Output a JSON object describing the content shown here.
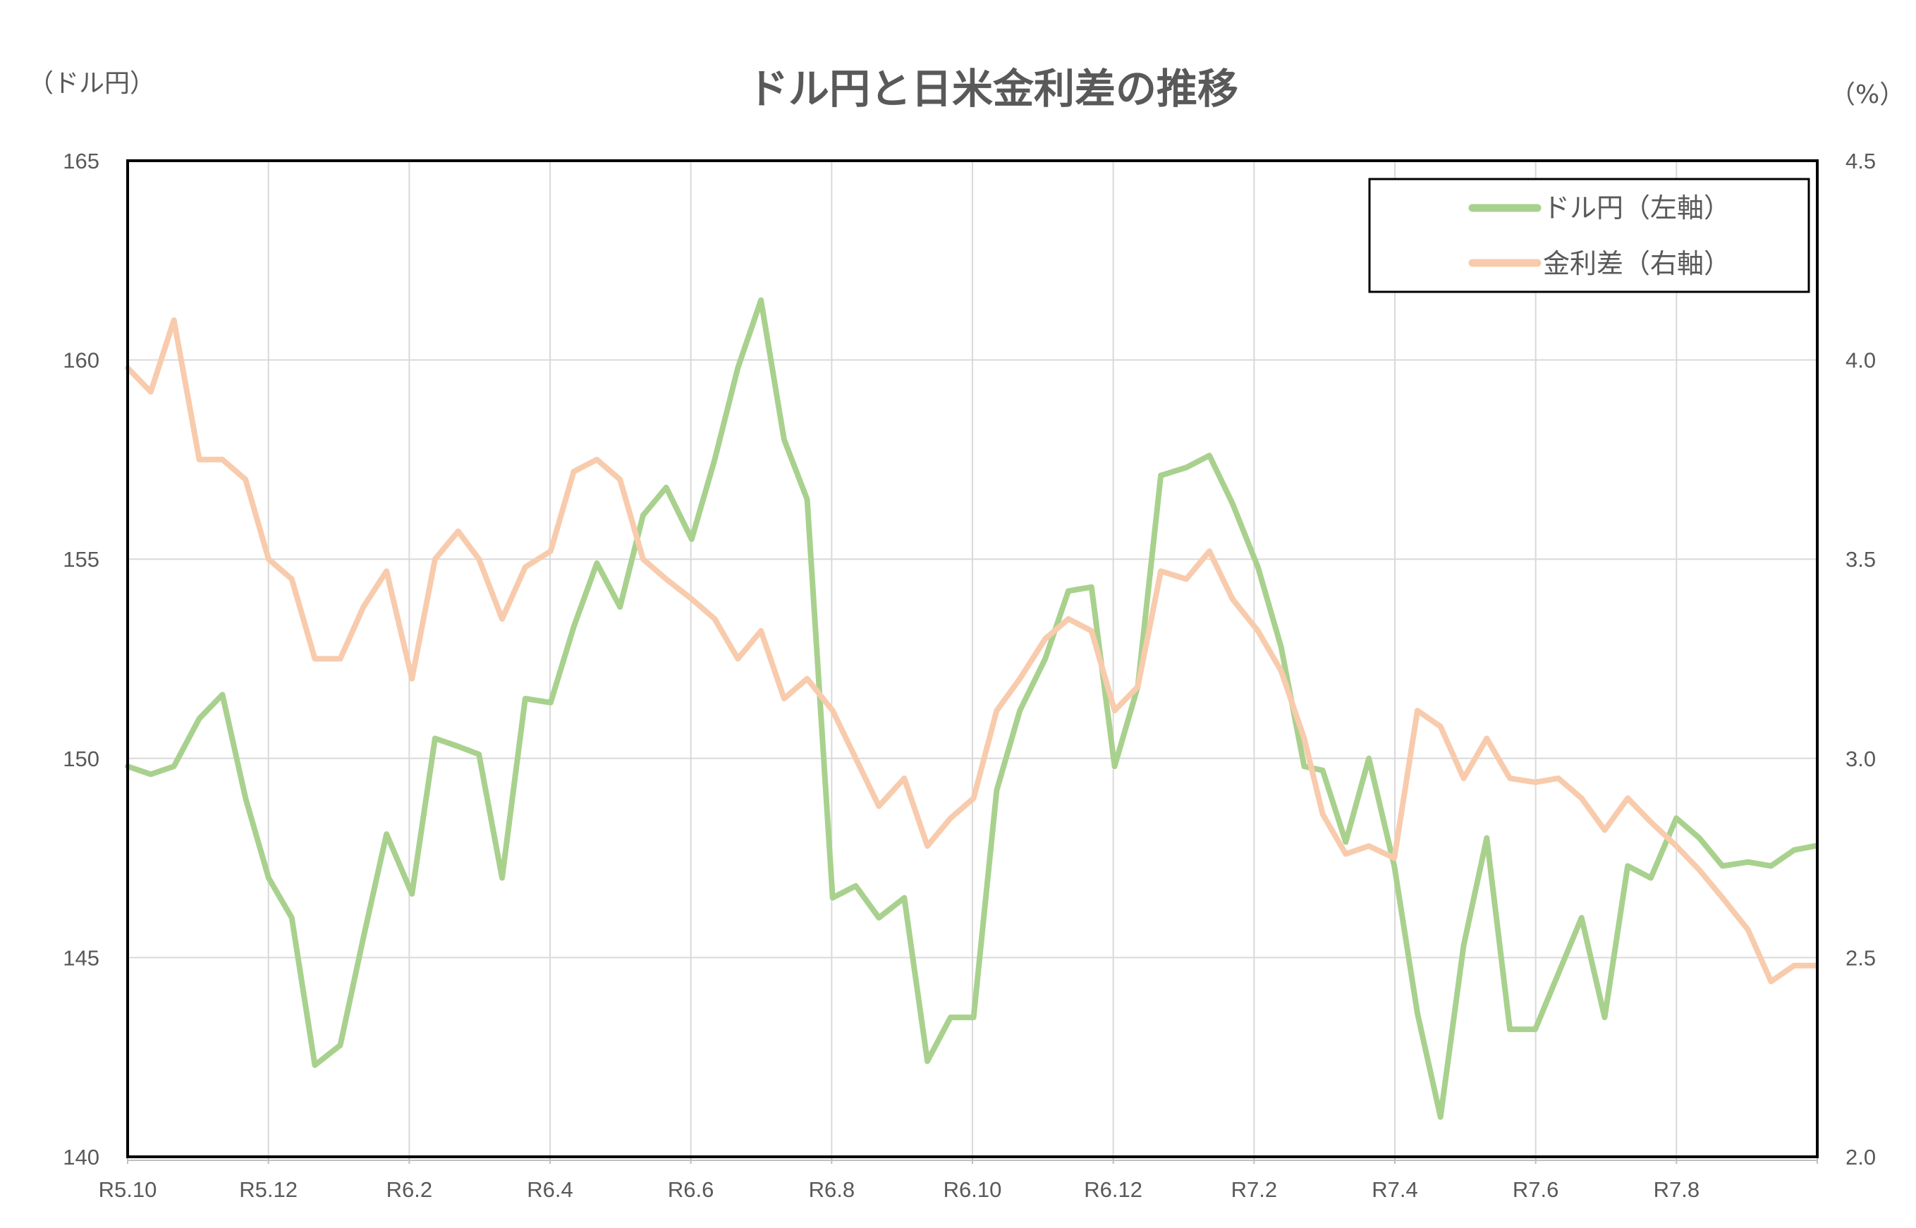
{
  "chart_data": {
    "type": "line",
    "title": "ドル円と日米金利差の推移",
    "ylabel_left": "（ドル円）",
    "ylabel_right": "（%）",
    "xlabel": "",
    "x_tick_labels": [
      "R5.10",
      "R5.12",
      "R6.2",
      "R6.4",
      "R6.6",
      "R6.8",
      "R6.10",
      "R6.12",
      "R7.2",
      "R7.4",
      "R7.6",
      "R7.8"
    ],
    "x_range": [
      "2023-10-01",
      "2025-10-01"
    ],
    "y_left": {
      "range": [
        140,
        165
      ],
      "ticks": [
        "140",
        "145",
        "150",
        "155",
        "160",
        "165"
      ]
    },
    "y_right": {
      "range": [
        2.0,
        4.5
      ],
      "ticks": [
        "2.0",
        "2.5",
        "3.0",
        "3.5",
        "4.0",
        "4.5"
      ]
    },
    "grid": true,
    "legend_position": "top-right",
    "dates": [
      "2023-10-01",
      "2023-10-11",
      "2023-10-21",
      "2023-11-01",
      "2023-11-11",
      "2023-11-21",
      "2023-12-01",
      "2023-12-11",
      "2023-12-21",
      "2024-01-01",
      "2024-01-11",
      "2024-01-21",
      "2024-02-01",
      "2024-02-11",
      "2024-02-21",
      "2024-03-01",
      "2024-03-11",
      "2024-03-21",
      "2024-04-01",
      "2024-04-11",
      "2024-04-21",
      "2024-05-01",
      "2024-05-11",
      "2024-05-21",
      "2024-06-01",
      "2024-06-11",
      "2024-06-21",
      "2024-07-01",
      "2024-07-11",
      "2024-07-21",
      "2024-08-01",
      "2024-08-11",
      "2024-08-21",
      "2024-09-01",
      "2024-09-11",
      "2024-09-21",
      "2024-10-01",
      "2024-10-11",
      "2024-10-21",
      "2024-11-01",
      "2024-11-11",
      "2024-11-21",
      "2024-12-01",
      "2024-12-11",
      "2024-12-21",
      "2025-01-01",
      "2025-01-11",
      "2025-01-21",
      "2025-02-01",
      "2025-02-11",
      "2025-02-21",
      "2025-03-01",
      "2025-03-11",
      "2025-03-21",
      "2025-04-01",
      "2025-04-11",
      "2025-04-21",
      "2025-05-01",
      "2025-05-11",
      "2025-05-21",
      "2025-06-01",
      "2025-06-11",
      "2025-06-21",
      "2025-07-01",
      "2025-07-11",
      "2025-07-21",
      "2025-08-01",
      "2025-08-11",
      "2025-08-21",
      "2025-09-01",
      "2025-09-11",
      "2025-09-21",
      "2025-09-30"
    ],
    "series": [
      {
        "name": "ドル円（左軸）",
        "axis": "left",
        "color": "#a9d18e",
        "values": [
          149.8,
          149.6,
          149.8,
          151.0,
          151.6,
          149.0,
          147.0,
          146.0,
          142.3,
          142.8,
          145.5,
          148.1,
          146.6,
          150.5,
          150.3,
          150.1,
          147.0,
          151.5,
          151.4,
          153.3,
          154.9,
          153.8,
          156.1,
          156.8,
          155.5,
          157.5,
          159.8,
          161.5,
          158.0,
          156.5,
          146.5,
          146.8,
          146.0,
          146.5,
          142.4,
          143.5,
          143.5,
          149.2,
          151.2,
          152.5,
          154.2,
          154.3,
          149.8,
          151.8,
          157.1,
          157.3,
          157.6,
          156.4,
          154.8,
          152.8,
          149.8,
          149.7,
          147.9,
          150.0,
          147.3,
          143.6,
          141.0,
          145.3,
          148.0,
          143.2,
          143.2,
          144.6,
          146.0,
          143.5,
          147.3,
          147.0,
          148.5,
          148.0,
          147.3,
          147.4,
          147.3,
          147.7,
          147.8
        ]
      },
      {
        "name": "金利差（右軸）",
        "axis": "right",
        "color": "#f8cbad",
        "values": [
          3.98,
          3.92,
          4.1,
          3.75,
          3.75,
          3.7,
          3.5,
          3.45,
          3.25,
          3.25,
          3.38,
          3.47,
          3.2,
          3.5,
          3.57,
          3.5,
          3.35,
          3.48,
          3.52,
          3.72,
          3.75,
          3.7,
          3.5,
          3.45,
          3.4,
          3.35,
          3.25,
          3.32,
          3.15,
          3.2,
          3.12,
          3.0,
          2.88,
          2.95,
          2.78,
          2.85,
          2.9,
          3.12,
          3.2,
          3.3,
          3.35,
          3.32,
          3.12,
          3.18,
          3.47,
          3.45,
          3.52,
          3.4,
          3.32,
          3.22,
          3.05,
          2.86,
          2.76,
          2.78,
          2.75,
          3.12,
          3.08,
          2.95,
          3.05,
          2.95,
          2.94,
          2.95,
          2.9,
          2.82,
          2.9,
          2.84,
          2.78,
          2.72,
          2.65,
          2.57,
          2.44,
          2.48,
          2.48
        ]
      }
    ]
  }
}
